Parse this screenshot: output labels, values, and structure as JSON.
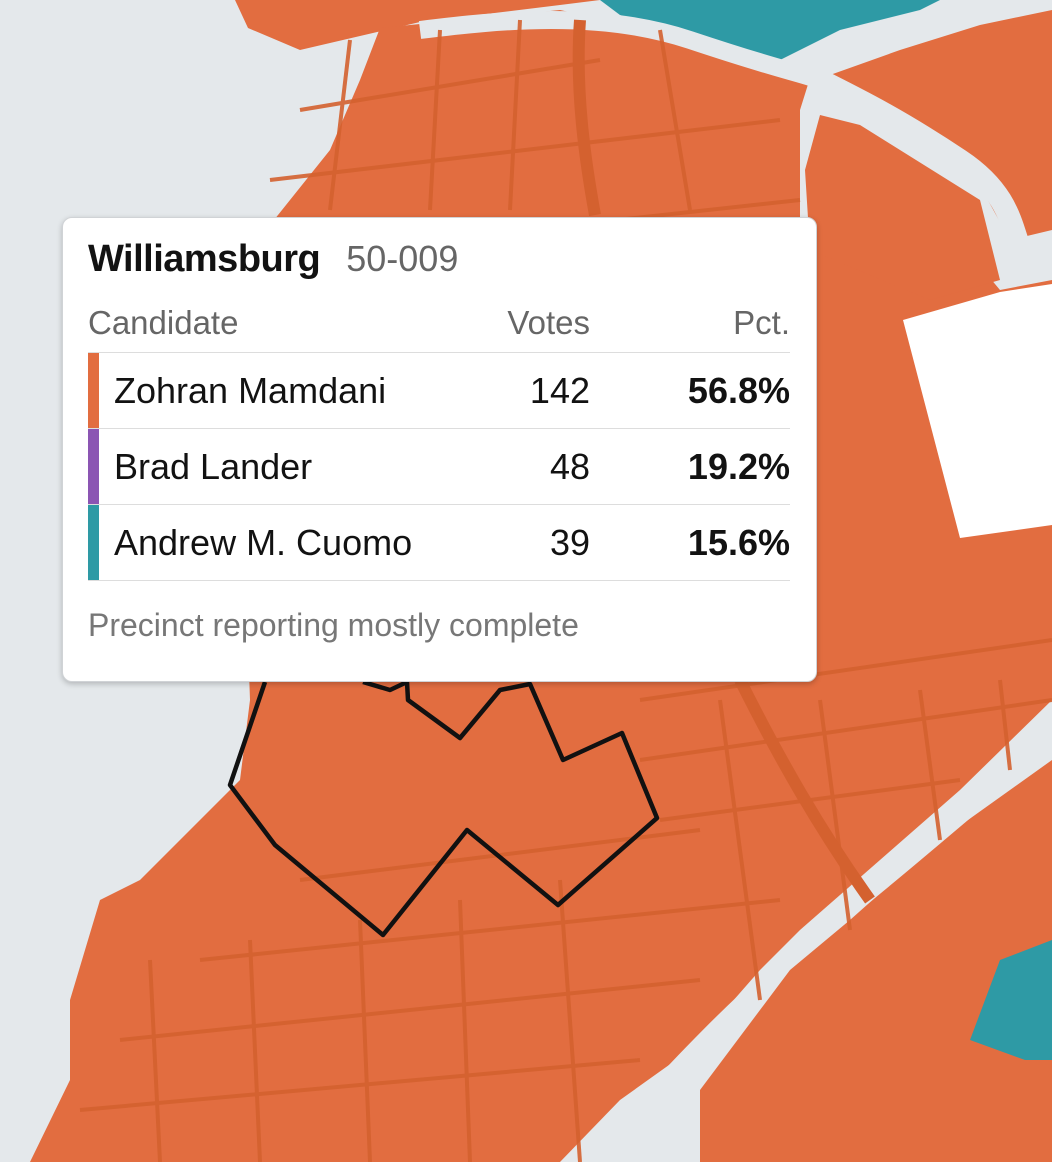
{
  "map": {
    "colors": {
      "water": "#e4e8eb",
      "mamdani": "#e26d40",
      "street": "#d4612f",
      "cuomo": "#2e9aa5",
      "no_data": "#ffffff",
      "highlight_outline": "#111111"
    }
  },
  "tooltip": {
    "neighborhood": "Williamsburg",
    "precinct_id": "50-009",
    "columns": {
      "candidate": "Candidate",
      "votes": "Votes",
      "pct": "Pct."
    },
    "rows": [
      {
        "name": "Zohran Mamdani",
        "votes": "142",
        "pct": "56.8%",
        "color": "#e26d40"
      },
      {
        "name": "Brad Lander",
        "votes": "48",
        "pct": "19.2%",
        "color": "#8b55b3"
      },
      {
        "name": "Andrew M. Cuomo",
        "votes": "39",
        "pct": "15.6%",
        "color": "#2e9aa5"
      }
    ],
    "footnote": "Precinct reporting mostly complete"
  }
}
